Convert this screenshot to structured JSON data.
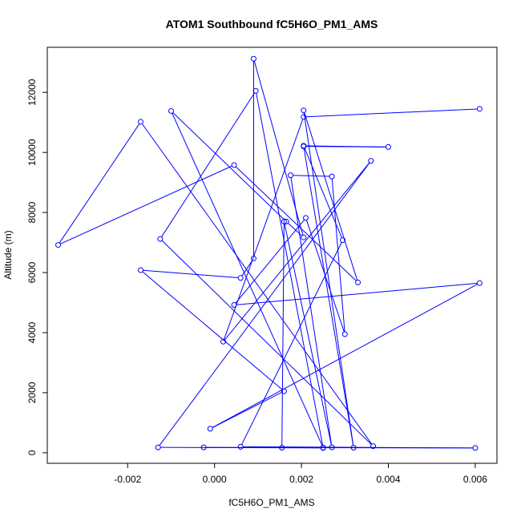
{
  "chart_data": {
    "type": "line",
    "title": "ATOM1 Southbound fC5H6O_PM1_AMS",
    "xlabel": "fC5H6O_PM1_AMS",
    "ylabel": "Altitude (m)",
    "xlim": [
      -0.00385,
      0.0065
    ],
    "ylim": [
      -350,
      13500
    ],
    "xticks": [
      {
        "value": -0.002,
        "label": "-0.002"
      },
      {
        "value": 0.0,
        "label": "0.000"
      },
      {
        "value": 0.002,
        "label": "0.002"
      },
      {
        "value": 0.004,
        "label": "0.004"
      },
      {
        "value": 0.006,
        "label": "0.006"
      }
    ],
    "yticks": [
      {
        "value": 0,
        "label": "0"
      },
      {
        "value": 2000,
        "label": "2000"
      },
      {
        "value": 4000,
        "label": "4000"
      },
      {
        "value": 6000,
        "label": "6000"
      },
      {
        "value": 8000,
        "label": "8000"
      },
      {
        "value": 10000,
        "label": "10000"
      },
      {
        "value": 12000,
        "label": "12000"
      }
    ],
    "grid": false,
    "series_color": "#0000ff",
    "series": [
      {
        "marker": "open-circle",
        "points": [
          {
            "x": 0.0061,
            "y": 11450
          },
          {
            "x": 0.00205,
            "y": 11180
          },
          {
            "x": 0.0002,
            "y": 3700
          },
          {
            "x": 0.0036,
            "y": 9720
          },
          {
            "x": -0.0013,
            "y": 180
          },
          {
            "x": 0.0025,
            "y": 160
          },
          {
            "x": 0.00095,
            "y": 12050
          },
          {
            "x": -0.00125,
            "y": 7120
          },
          {
            "x": 0.00365,
            "y": 220
          },
          {
            "x": -0.0017,
            "y": 11020
          },
          {
            "x": -0.0036,
            "y": 6920
          },
          {
            "x": 0.00045,
            "y": 9580
          },
          {
            "x": 0.0033,
            "y": 5670
          },
          {
            "x": 0.00205,
            "y": 11400
          },
          {
            "x": 0.0032,
            "y": 170
          },
          {
            "x": 0.00205,
            "y": 10200
          },
          {
            "x": 0.004,
            "y": 10180
          },
          {
            "x": 0.00205,
            "y": 10220
          },
          {
            "x": 0.00295,
            "y": 7080
          },
          {
            "x": 0.0006,
            "y": 200
          },
          {
            "x": 0.006,
            "y": 160
          },
          {
            "x": 0.00155,
            "y": 170
          },
          {
            "x": 0.0016,
            "y": 7700
          },
          {
            "x": 0.0027,
            "y": 180
          },
          {
            "x": 0.00175,
            "y": 9240
          },
          {
            "x": 0.0027,
            "y": 9200
          },
          {
            "x": 0.003,
            "y": 3950
          },
          {
            "x": 0.0021,
            "y": 7820
          },
          {
            "x": 0.00045,
            "y": 4920
          },
          {
            "x": 0.0061,
            "y": 5650
          },
          {
            "x": -0.0001,
            "y": 800
          },
          {
            "x": 0.0016,
            "y": 2050
          },
          {
            "x": -0.0017,
            "y": 6080
          },
          {
            "x": 0.0006,
            "y": 5820
          },
          {
            "x": 0.0009,
            "y": 6470
          },
          {
            "x": 0.0009,
            "y": 13120
          },
          {
            "x": 0.00205,
            "y": 7170
          },
          {
            "x": 0.00165,
            "y": 7700
          },
          {
            "x": -0.001,
            "y": 11380
          },
          {
            "x": 0.0025,
            "y": 170
          },
          {
            "x": -0.00025,
            "y": 180
          }
        ]
      }
    ]
  }
}
